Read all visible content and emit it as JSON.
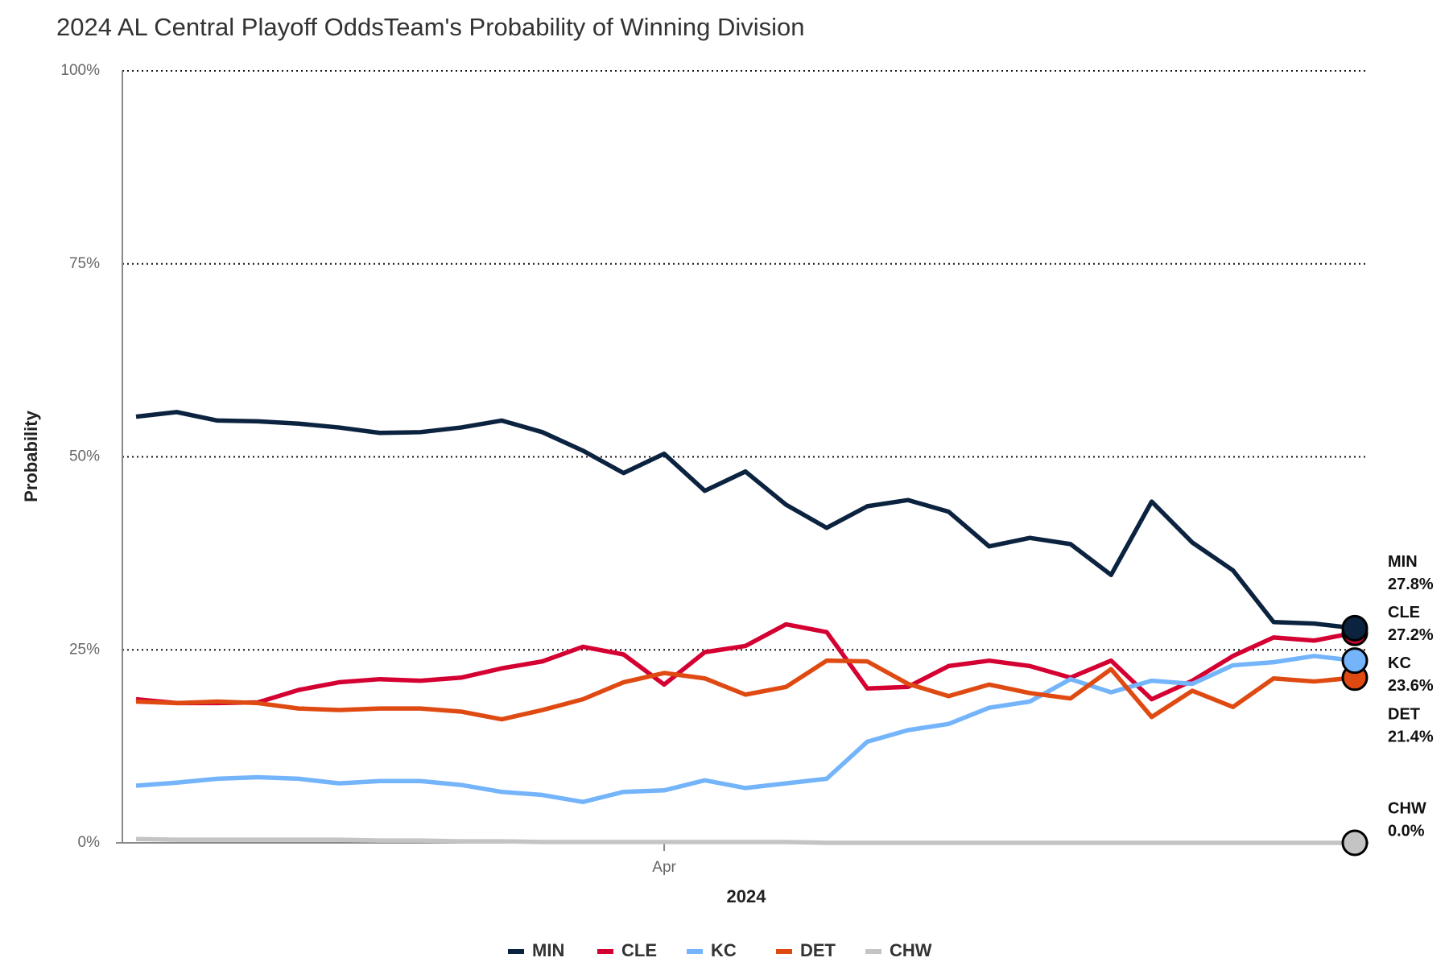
{
  "chart_data": {
    "type": "line",
    "title": "2024 AL Central Playoff OddsTeam's Probability of Winning Division",
    "x_label": "2024",
    "y_label": "Probability",
    "categories": [
      null,
      null,
      null,
      null,
      null,
      null,
      null,
      null,
      null,
      null,
      null,
      null,
      null,
      "Apr",
      null,
      null,
      null,
      null,
      null,
      null,
      null,
      null,
      null,
      null,
      null,
      null,
      null,
      null,
      null,
      null,
      null
    ],
    "ylim": [
      0,
      100
    ],
    "yticks": [
      {
        "value": 0,
        "label": "0%"
      },
      {
        "value": 25,
        "label": "25%"
      },
      {
        "value": 50,
        "label": "50%"
      },
      {
        "value": 75,
        "label": "75%"
      },
      {
        "value": 100,
        "label": "100%"
      }
    ],
    "grid": true,
    "legend": "bottom",
    "series": [
      {
        "name": "MIN",
        "color": "#0c2340",
        "values": [
          55.2,
          55.8,
          54.7,
          54.6,
          54.3,
          53.8,
          53.1,
          53.2,
          53.8,
          54.7,
          53.2,
          50.8,
          47.9,
          50.4,
          45.6,
          48.1,
          43.8,
          40.8,
          43.6,
          44.4,
          42.9,
          38.4,
          39.5,
          38.7,
          34.7,
          44.2,
          38.9,
          35.3,
          28.6,
          28.4,
          27.8
        ],
        "value_labels": [
          null,
          null,
          null,
          null,
          null,
          null,
          null,
          null,
          null,
          null,
          null,
          null,
          null,
          null,
          null,
          null,
          null,
          null,
          null,
          null,
          null,
          null,
          null,
          null,
          null,
          null,
          null,
          null,
          null,
          null,
          "27.8%"
        ]
      },
      {
        "name": "CLE",
        "color": "#d50032",
        "values": [
          18.6,
          18.1,
          18.1,
          18.2,
          19.8,
          20.8,
          21.2,
          21.0,
          21.4,
          22.6,
          23.5,
          25.4,
          24.4,
          20.5,
          24.7,
          25.5,
          28.3,
          27.3,
          20.0,
          20.2,
          22.9,
          23.6,
          22.9,
          21.4,
          23.6,
          18.6,
          21.0,
          24.2,
          26.6,
          26.2,
          27.2
        ],
        "value_labels": [
          null,
          null,
          null,
          null,
          null,
          null,
          null,
          null,
          null,
          null,
          null,
          null,
          null,
          null,
          null,
          null,
          null,
          null,
          null,
          null,
          null,
          null,
          null,
          null,
          null,
          null,
          null,
          null,
          null,
          null,
          "27.2%"
        ]
      },
      {
        "name": "KC",
        "color": "#74b4fa",
        "values": [
          7.4,
          7.8,
          8.3,
          8.5,
          8.3,
          7.7,
          8.0,
          8.0,
          7.5,
          6.6,
          6.2,
          5.3,
          6.6,
          6.8,
          8.1,
          7.1,
          7.7,
          8.3,
          13.1,
          14.6,
          15.4,
          17.5,
          18.3,
          21.2,
          19.5,
          21.0,
          20.6,
          23.0,
          23.4,
          24.2,
          23.6
        ],
        "value_labels": [
          null,
          null,
          null,
          null,
          null,
          null,
          null,
          null,
          null,
          null,
          null,
          null,
          null,
          null,
          null,
          null,
          null,
          null,
          null,
          null,
          null,
          null,
          null,
          null,
          null,
          null,
          null,
          null,
          null,
          null,
          "23.6%"
        ]
      },
      {
        "name": "DET",
        "color": "#df4a12",
        "values": [
          18.3,
          18.1,
          18.3,
          18.1,
          17.4,
          17.2,
          17.4,
          17.4,
          17.0,
          16.0,
          17.2,
          18.6,
          20.8,
          22.0,
          21.3,
          19.2,
          20.2,
          23.6,
          23.5,
          20.6,
          19.0,
          20.5,
          19.4,
          18.7,
          22.5,
          16.3,
          19.7,
          17.6,
          21.3,
          20.9,
          21.4
        ],
        "value_labels": [
          null,
          null,
          null,
          null,
          null,
          null,
          null,
          null,
          null,
          null,
          null,
          null,
          null,
          null,
          null,
          null,
          null,
          null,
          null,
          null,
          null,
          null,
          null,
          null,
          null,
          null,
          null,
          null,
          null,
          null,
          "21.4%"
        ]
      },
      {
        "name": "CHW",
        "color": "#c4c4c4",
        "values": [
          0.5,
          0.4,
          0.4,
          0.4,
          0.4,
          0.4,
          0.3,
          0.3,
          0.2,
          0.2,
          0.1,
          0.1,
          0.1,
          0.1,
          0.1,
          0.1,
          0.1,
          0,
          0,
          0,
          0,
          0,
          0,
          0,
          0,
          0,
          0,
          0,
          0,
          0,
          0
        ],
        "value_labels": [
          null,
          null,
          null,
          null,
          null,
          null,
          null,
          null,
          null,
          null,
          null,
          null,
          null,
          null,
          null,
          null,
          null,
          null,
          null,
          null,
          null,
          null,
          null,
          null,
          null,
          null,
          null,
          null,
          null,
          null,
          "0.0%"
        ]
      }
    ]
  }
}
